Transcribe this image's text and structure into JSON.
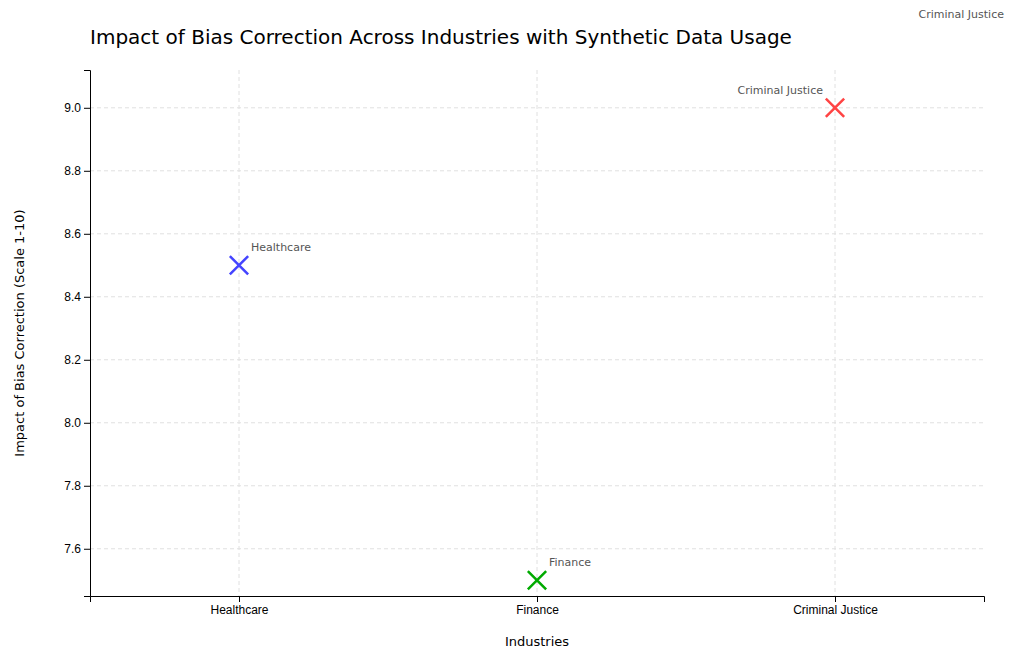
{
  "chart_data": {
    "type": "scatter",
    "title": "Impact of Bias Correction Across Industries with Synthetic Data Usage",
    "xlabel": "Industries",
    "ylabel": "Impact of Bias Correction (Scale 1-10)",
    "categories": [
      "Healthcare",
      "Finance",
      "Criminal Justice"
    ],
    "values": [
      8.5,
      7.5,
      9.0
    ],
    "colors": [
      "#4444ff",
      "#00aa00",
      "#ff4444"
    ],
    "marker": "x",
    "ylim": [
      7.45,
      9.12
    ],
    "yticks": [
      7.6,
      7.8,
      {
        "value": 8,
        "label": "8.0"
      },
      8.2,
      8.4,
      8.6,
      8.8,
      {
        "value": 9,
        "label": "9.0"
      }
    ],
    "grid": true,
    "annotations": [
      "Healthcare",
      "Finance",
      "Criminal Justice",
      "Criminal Justice"
    ]
  }
}
